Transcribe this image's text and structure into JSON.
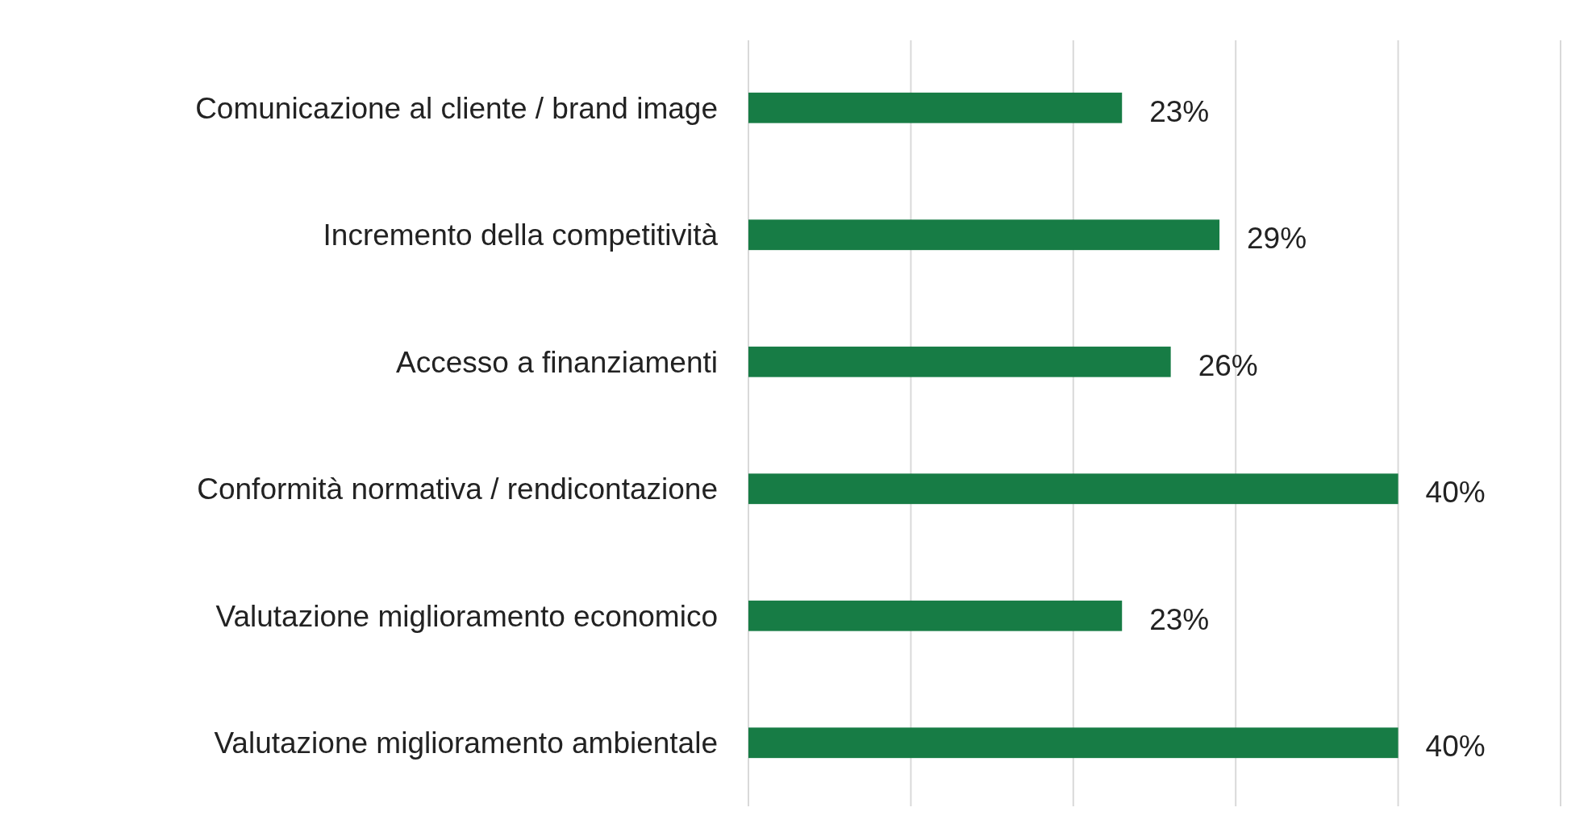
{
  "chart_data": {
    "type": "bar",
    "orientation": "horizontal",
    "categories": [
      "Comunicazione al cliente / brand image",
      "Incremento della competitività",
      "Accesso a finanziamenti",
      "Conformità normativa / rendicontazione",
      "Valutazione miglioramento economico",
      "Valutazione miglioramento ambientale"
    ],
    "values": [
      23,
      29,
      26,
      40,
      23,
      40
    ],
    "value_labels": [
      "23%",
      "29%",
      "26%",
      "40%",
      "23%",
      "40%"
    ],
    "color": "#177c45",
    "xlim": [
      0,
      50
    ],
    "xticks": [
      {
        "value": 0,
        "label": null
      },
      {
        "value": 10,
        "label": null
      },
      {
        "value": 20,
        "label": null
      },
      {
        "value": 30,
        "label": null
      },
      {
        "value": 40,
        "label": null
      },
      {
        "value": 50,
        "label": null
      }
    ],
    "grid": "x",
    "tick_labels": "y"
  }
}
